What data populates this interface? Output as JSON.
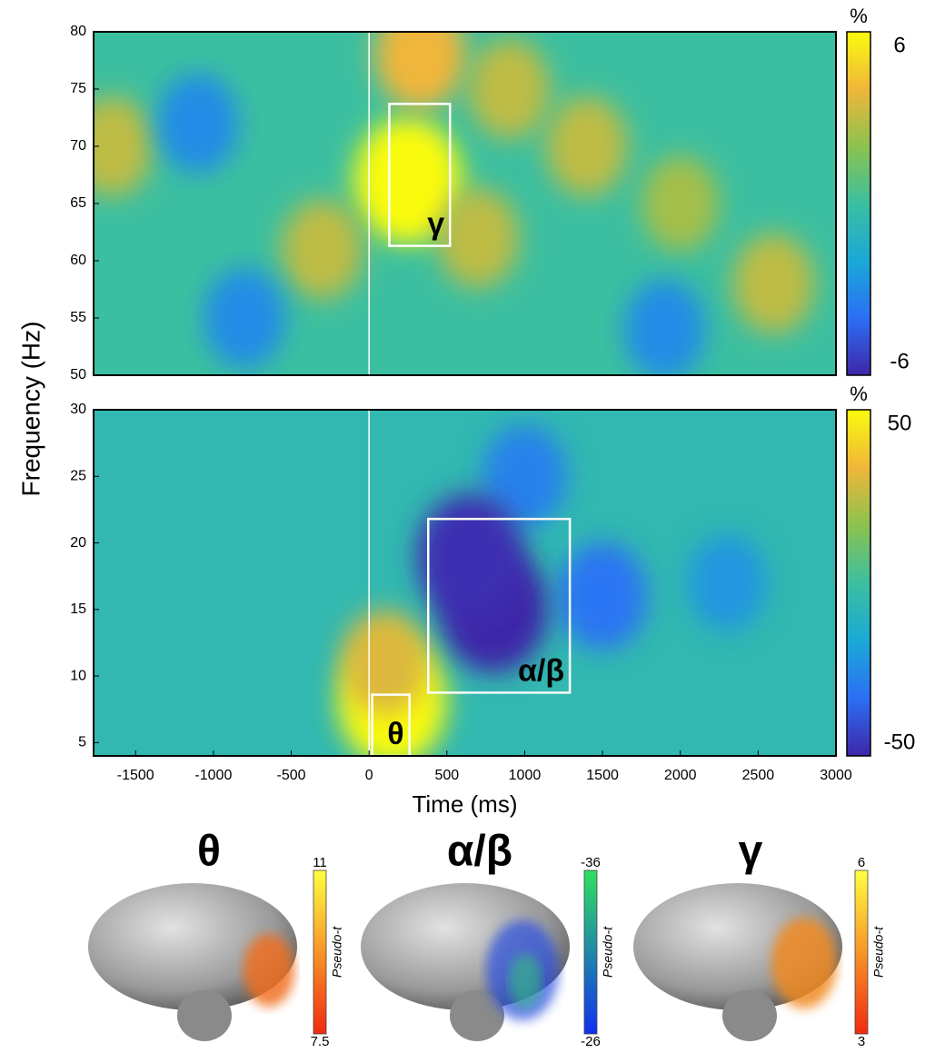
{
  "chart_data": [
    {
      "type": "heatmap",
      "ylim": [
        50,
        80
      ],
      "yticks": [
        50,
        55,
        60,
        65,
        70,
        75,
        80
      ],
      "xlim": [
        -1770,
        3000
      ],
      "onset": 0,
      "clim": [
        -6,
        6
      ],
      "cticks": [
        -6,
        6
      ],
      "clabel": "%",
      "colormap": [
        "#3e26a8",
        "#2c6ff5",
        "#1aa9d6",
        "#3cbfa0",
        "#8cc24e",
        "#f0b63a",
        "#f9fb0e"
      ],
      "background": 0,
      "blobs": [
        {
          "time": 250,
          "freq": 67,
          "value": 6
        },
        {
          "time": 330,
          "freq": 78,
          "value": 4
        },
        {
          "time": -1650,
          "freq": 70,
          "value": 3
        },
        {
          "time": -300,
          "freq": 61,
          "value": 3
        },
        {
          "time": 700,
          "freq": 62,
          "value": 3
        },
        {
          "time": 900,
          "freq": 75,
          "value": 3
        },
        {
          "time": 1400,
          "freq": 70,
          "value": 3
        },
        {
          "time": 2000,
          "freq": 65,
          "value": 2.5
        },
        {
          "time": 2600,
          "freq": 58,
          "value": 3
        },
        {
          "time": -1100,
          "freq": 72,
          "value": -3
        },
        {
          "time": -800,
          "freq": 55,
          "value": -3
        },
        {
          "time": 1900,
          "freq": 54,
          "value": -3
        }
      ],
      "boxes": [
        {
          "label": "γ",
          "t0": 130,
          "t1": 520,
          "f0": 61.3,
          "f1": 73.7
        }
      ]
    },
    {
      "type": "heatmap",
      "ylim": [
        4,
        30
      ],
      "yticks": [
        5,
        10,
        15,
        20,
        25,
        30
      ],
      "xlim": [
        -1770,
        3000
      ],
      "xticks": [
        -1500,
        -1000,
        -500,
        0,
        500,
        1000,
        1500,
        2000,
        2500,
        3000
      ],
      "onset": 0,
      "xlabel": "Time (ms)",
      "clim": [
        -50,
        50
      ],
      "cticks": [
        -50,
        50
      ],
      "clabel": "%",
      "colormap": [
        "#3e26a8",
        "#2c6ff5",
        "#1aa9d6",
        "#3cbfa0",
        "#8cc24e",
        "#f0b63a",
        "#f9fb0e"
      ],
      "background": -5,
      "blobs": [
        {
          "time": 2300,
          "freq": 17,
          "value": -22
        },
        {
          "time": 1500,
          "freq": 16,
          "value": -32
        },
        {
          "time": 1000,
          "freq": 25,
          "value": -28
        },
        {
          "time": 800,
          "freq": 15,
          "value": -50
        },
        {
          "time": 650,
          "freq": 19,
          "value": -48
        },
        {
          "time": 150,
          "freq": 8,
          "value": 50
        },
        {
          "time": 100,
          "freq": 11,
          "value": 30
        }
      ],
      "boxes": [
        {
          "label": "α/β",
          "t0": 380,
          "t1": 1290,
          "f0": 8.75,
          "f1": 21.8
        },
        {
          "label": "θ",
          "t0": 20,
          "t1": 260,
          "f0": 4,
          "f1": 8.6
        }
      ]
    }
  ],
  "ylabel": "Frequency (Hz)",
  "source_maps": [
    {
      "title": "θ",
      "cmax": 11,
      "cmin": 7.5,
      "clabel": "Pseudo-t",
      "colors": [
        "#ffff40",
        "#f02a10"
      ]
    },
    {
      "title": "α/β",
      "cmax": -36,
      "cmin": -26,
      "clabel": "Pseudo-t",
      "colors": [
        "#30e060",
        "#1030f0"
      ]
    },
    {
      "title": "γ",
      "cmax": 6,
      "cmin": 3,
      "clabel": "Pseudo-t",
      "colors": [
        "#ffff40",
        "#f02a10"
      ]
    }
  ]
}
